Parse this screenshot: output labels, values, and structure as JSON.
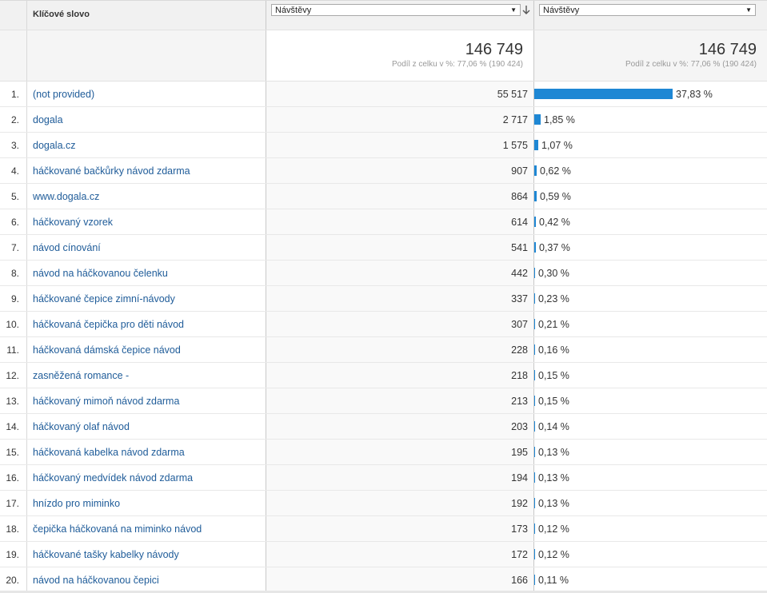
{
  "header": {
    "keyword_col": "Klíčové slovo",
    "metric1_select": "Návštěvy",
    "metric2_select": "Návštěvy"
  },
  "totals": {
    "visits": "146 749",
    "visits_share": "Podíl z celku v %: 77,06 % (190 424)",
    "pct_visits": "146 749",
    "pct_share": "Podíl z celku v %: 77,06 % (190 424)"
  },
  "colors": {
    "bar": "#1e87d4",
    "link": "#1f5c99"
  },
  "icons": {
    "dropdown": "triangle-down-icon",
    "sort": "sort-arrow-icon"
  },
  "rows": [
    {
      "num": "1.",
      "keyword": "(not provided)",
      "visits": "55 517",
      "pct": "37,83 %",
      "share": 37.83
    },
    {
      "num": "2.",
      "keyword": "dogala",
      "visits": "2 717",
      "pct": "1,85 %",
      "share": 1.85
    },
    {
      "num": "3.",
      "keyword": "dogala.cz",
      "visits": "1 575",
      "pct": "1,07 %",
      "share": 1.07
    },
    {
      "num": "4.",
      "keyword": "háčkované bačkůrky návod zdarma",
      "visits": "907",
      "pct": "0,62 %",
      "share": 0.62
    },
    {
      "num": "5.",
      "keyword": "www.dogala.cz",
      "visits": "864",
      "pct": "0,59 %",
      "share": 0.59
    },
    {
      "num": "6.",
      "keyword": "háčkovaný vzorek",
      "visits": "614",
      "pct": "0,42 %",
      "share": 0.42
    },
    {
      "num": "7.",
      "keyword": "návod cínování",
      "visits": "541",
      "pct": "0,37 %",
      "share": 0.37
    },
    {
      "num": "8.",
      "keyword": "návod na háčkovanou čelenku",
      "visits": "442",
      "pct": "0,30 %",
      "share": 0.3
    },
    {
      "num": "9.",
      "keyword": "háčkované čepice zimní-návody",
      "visits": "337",
      "pct": "0,23 %",
      "share": 0.23
    },
    {
      "num": "10.",
      "keyword": "háčkovaná čepička pro děti návod",
      "visits": "307",
      "pct": "0,21 %",
      "share": 0.21
    },
    {
      "num": "11.",
      "keyword": "háčkovaná dámská čepice návod",
      "visits": "228",
      "pct": "0,16 %",
      "share": 0.16
    },
    {
      "num": "12.",
      "keyword": "zasněžená romance -",
      "visits": "218",
      "pct": "0,15 %",
      "share": 0.15
    },
    {
      "num": "13.",
      "keyword": "háčkovaný mimoň návod zdarma",
      "visits": "213",
      "pct": "0,15 %",
      "share": 0.15
    },
    {
      "num": "14.",
      "keyword": "háčkovaný olaf návod",
      "visits": "203",
      "pct": "0,14 %",
      "share": 0.14
    },
    {
      "num": "15.",
      "keyword": "háčkovaná kabelka návod zdarma",
      "visits": "195",
      "pct": "0,13 %",
      "share": 0.13
    },
    {
      "num": "16.",
      "keyword": "háčkovaný medvídek návod zdarma",
      "visits": "194",
      "pct": "0,13 %",
      "share": 0.13
    },
    {
      "num": "17.",
      "keyword": "hnízdo pro miminko",
      "visits": "192",
      "pct": "0,13 %",
      "share": 0.13
    },
    {
      "num": "18.",
      "keyword": "čepička háčkovaná na miminko návod",
      "visits": "173",
      "pct": "0,12 %",
      "share": 0.12
    },
    {
      "num": "19.",
      "keyword": "háčkované tašky kabelky návody",
      "visits": "172",
      "pct": "0,12 %",
      "share": 0.12
    },
    {
      "num": "20.",
      "keyword": "návod na háčkovanou čepici",
      "visits": "166",
      "pct": "0,11 %",
      "share": 0.11
    }
  ]
}
